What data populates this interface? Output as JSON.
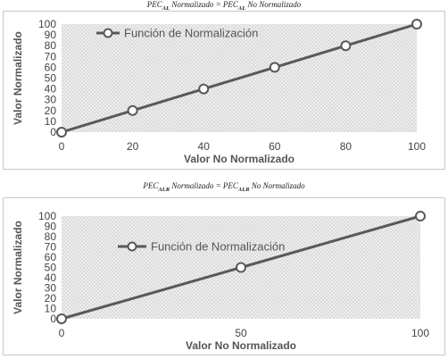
{
  "formulas": [
    {
      "pre": "PEC",
      "sub": "AL",
      "mid": " Normalizado = PEC",
      "sub2": "AL",
      "post": " No Normalizado"
    },
    {
      "pre": "PEC",
      "sub": "ALR",
      "mid": " Normalizado = PEC",
      "sub2": "ALR",
      "post": " No Normalizado"
    }
  ],
  "chart_data": [
    {
      "type": "line",
      "title": "",
      "xlabel": "Valor No Normalizado",
      "ylabel": "Valor Normalizado",
      "x_ticks": [
        "0",
        "20",
        "40",
        "60",
        "80",
        "100"
      ],
      "y_ticks": [
        "0",
        "10",
        "20",
        "30",
        "40",
        "50",
        "60",
        "70",
        "80",
        "90",
        "100"
      ],
      "xlim": [
        0,
        100
      ],
      "ylim": [
        0,
        100
      ],
      "x_scale": "category-evenly-spaced",
      "series": [
        {
          "name": "Función de Normalización",
          "x": [
            "0",
            "20",
            "40",
            "60",
            "80",
            "100"
          ],
          "values": [
            0,
            20,
            40,
            60,
            80,
            100
          ]
        }
      ],
      "legend": "top-left",
      "line_color": "#595959",
      "plot_background": "crosshatch-gray"
    },
    {
      "type": "line",
      "title": "",
      "xlabel": "Valor No Normalizado",
      "ylabel": "Valor Normalizado",
      "x_ticks": [
        "0",
        "50",
        "100"
      ],
      "y_ticks": [
        "0",
        "10",
        "20",
        "30",
        "40",
        "50",
        "60",
        "70",
        "80",
        "90",
        "100"
      ],
      "xlim": [
        0,
        100
      ],
      "ylim": [
        0,
        100
      ],
      "x_scale": "category-evenly-spaced",
      "series": [
        {
          "name": "Función de Normalización",
          "x": [
            "0",
            "50",
            "100"
          ],
          "values": [
            0,
            50,
            100
          ]
        }
      ],
      "legend": "top-left",
      "line_color": "#595959",
      "plot_background": "crosshatch-gray"
    }
  ]
}
